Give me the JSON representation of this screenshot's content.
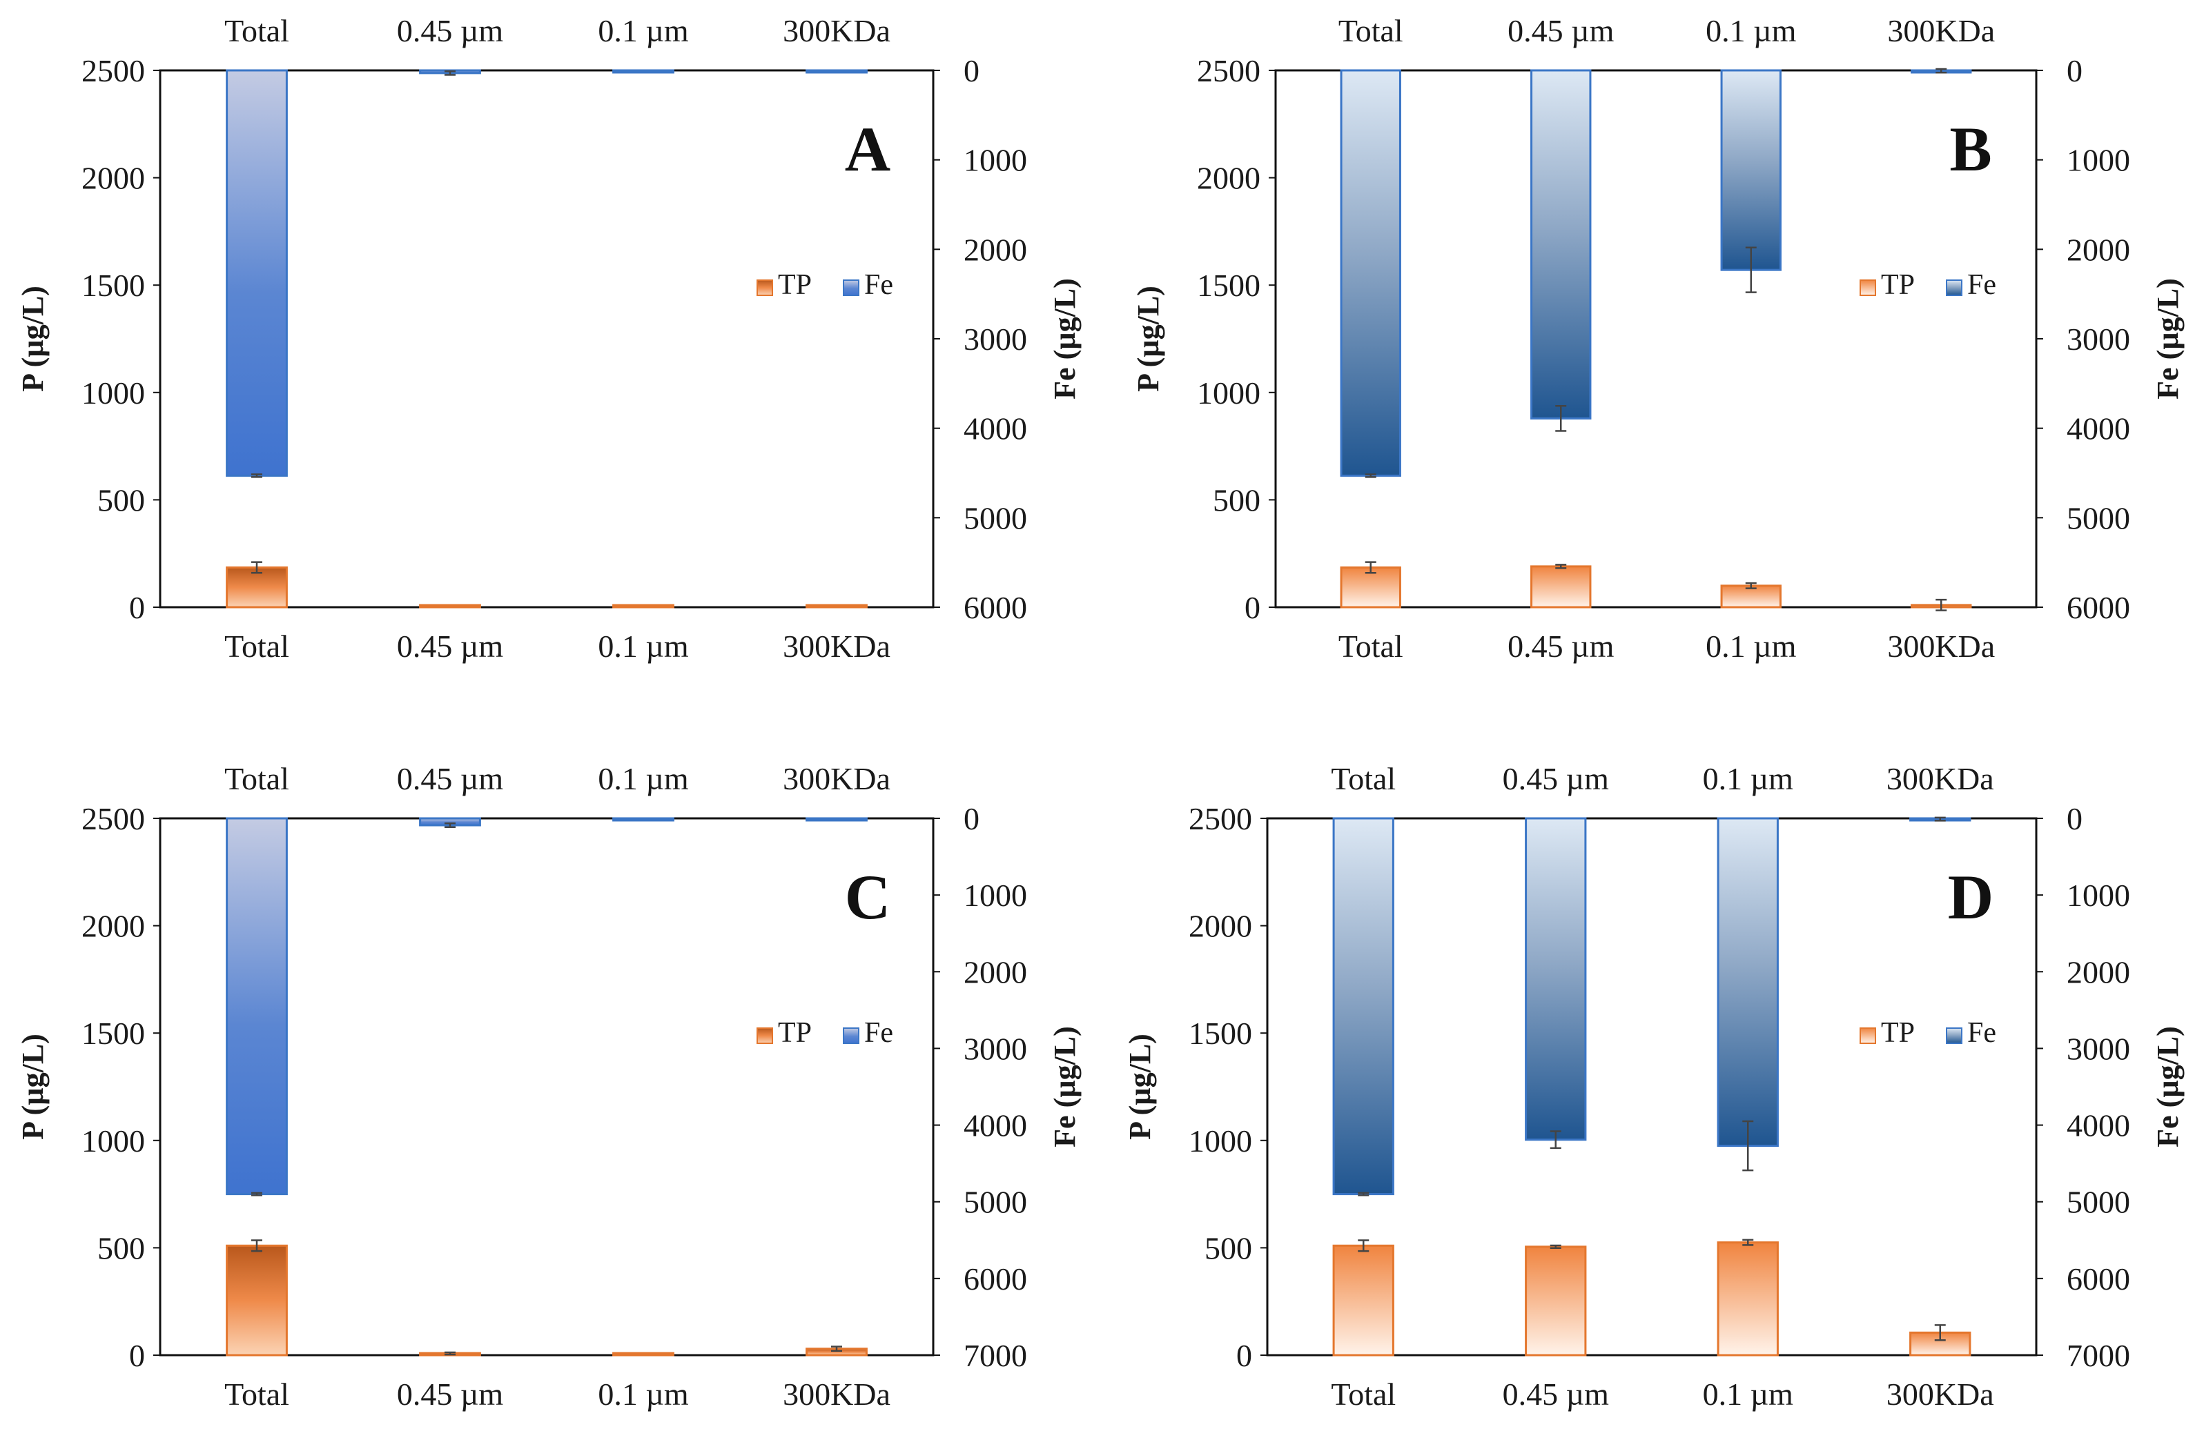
{
  "chart_data": [
    {
      "type": "bar",
      "panel_label": "A",
      "categories": [
        "Total",
        "0.45 µm",
        "0.1 µm",
        "300KDa"
      ],
      "ylabel": "P (µg/L)",
      "ylim": [
        0,
        2500
      ],
      "yticks": [
        "0",
        "500",
        "1000",
        "1500",
        "2000",
        "2500"
      ],
      "y2label": "Fe (µg/L)",
      "y2lim": [
        0,
        6000
      ],
      "y2_inverted": true,
      "y2ticks": [
        "0",
        "1000",
        "2000",
        "3000",
        "4000",
        "5000",
        "6000"
      ],
      "legend": [
        "TP",
        "Fe"
      ],
      "series": [
        {
          "name": "TP",
          "axis": "left",
          "values": [
            185,
            3,
            3,
            4
          ],
          "errors": [
            25,
            0,
            0,
            0
          ]
        },
        {
          "name": "Fe",
          "axis": "right",
          "values": [
            4530,
            30,
            5,
            5
          ],
          "errors": [
            15,
            20,
            0,
            0
          ]
        }
      ]
    },
    {
      "type": "bar",
      "panel_label": "B",
      "categories": [
        "Total",
        "0.45 µm",
        "0.1 µm",
        "300KDa"
      ],
      "ylabel": "P (µg/L)",
      "ylim": [
        0,
        2500
      ],
      "yticks": [
        "0",
        "500",
        "1000",
        "1500",
        "2000",
        "2500"
      ],
      "y2label": "Fe (µg/L)",
      "y2lim": [
        0,
        6000
      ],
      "y2_inverted": true,
      "y2ticks": [
        "0",
        "1000",
        "2000",
        "3000",
        "4000",
        "5000",
        "6000"
      ],
      "legend": [
        "TP",
        "Fe"
      ],
      "series": [
        {
          "name": "TP",
          "axis": "left",
          "values": [
            185,
            190,
            100,
            10
          ],
          "errors": [
            25,
            8,
            12,
            25
          ]
        },
        {
          "name": "Fe",
          "axis": "right",
          "values": [
            4530,
            3890,
            2230,
            5
          ],
          "errors": [
            15,
            140,
            250,
            20
          ]
        }
      ]
    },
    {
      "type": "bar",
      "panel_label": "C",
      "categories": [
        "Total",
        "0.45 µm",
        "0.1 µm",
        "300KDa"
      ],
      "ylabel": "P (µg/L)",
      "ylim": [
        0,
        2500
      ],
      "yticks": [
        "0",
        "500",
        "1000",
        "1500",
        "2000",
        "2500"
      ],
      "y2label": "Fe (µg/L)",
      "y2lim": [
        0,
        7000
      ],
      "y2_inverted": true,
      "y2ticks": [
        "0",
        "1000",
        "2000",
        "3000",
        "4000",
        "5000",
        "6000",
        "7000"
      ],
      "legend": [
        "TP",
        "Fe"
      ],
      "series": [
        {
          "name": "TP",
          "axis": "left",
          "values": [
            510,
            8,
            3,
            30
          ],
          "errors": [
            25,
            5,
            0,
            10
          ]
        },
        {
          "name": "Fe",
          "axis": "right",
          "values": [
            4900,
            90,
            5,
            5
          ],
          "errors": [
            15,
            25,
            0,
            0
          ]
        }
      ]
    },
    {
      "type": "bar",
      "panel_label": "D",
      "categories": [
        "Total",
        "0.45 µm",
        "0.1 µm",
        "300KDa"
      ],
      "ylabel": "P (µg/L)",
      "ylim": [
        0,
        2500
      ],
      "yticks": [
        "0",
        "500",
        "1000",
        "1500",
        "2000",
        "2500"
      ],
      "y2label": "Fe (µg/L)",
      "y2lim": [
        0,
        7000
      ],
      "y2_inverted": true,
      "y2ticks": [
        "0",
        "1000",
        "2000",
        "3000",
        "4000",
        "5000",
        "6000",
        "7000"
      ],
      "legend": [
        "TP",
        "Fe"
      ],
      "series": [
        {
          "name": "TP",
          "axis": "left",
          "values": [
            510,
            505,
            525,
            105
          ],
          "errors": [
            25,
            6,
            12,
            35
          ]
        },
        {
          "name": "Fe",
          "axis": "right",
          "values": [
            4900,
            4190,
            4270,
            10
          ],
          "errors": [
            15,
            110,
            320,
            20
          ]
        }
      ]
    }
  ]
}
